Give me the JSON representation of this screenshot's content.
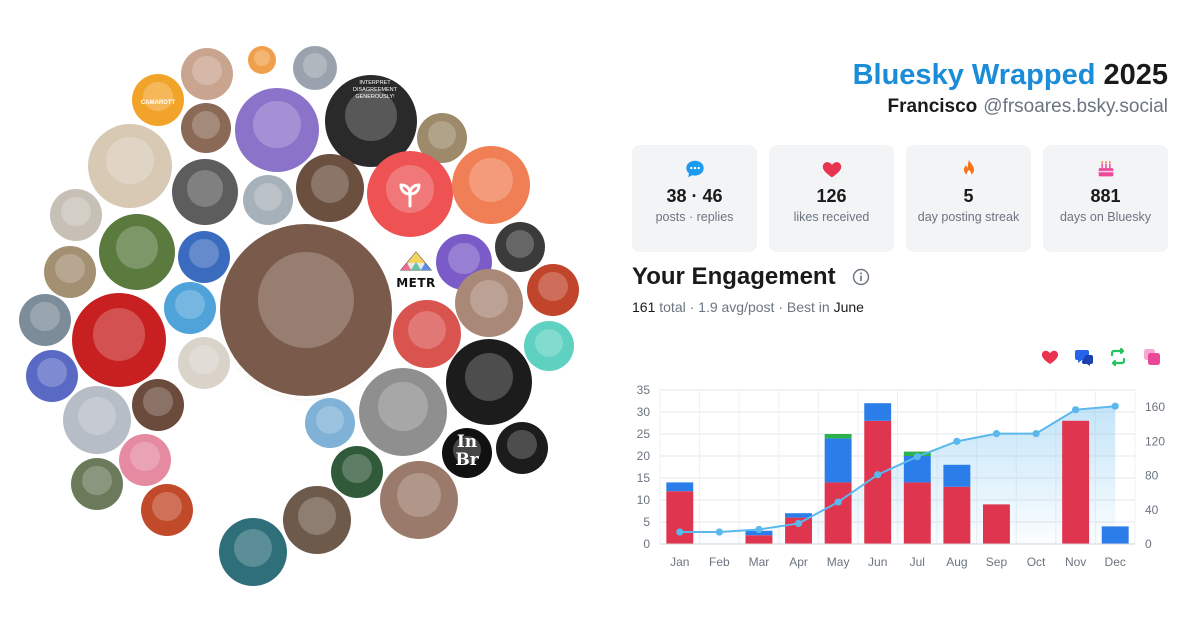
{
  "header": {
    "brand": "Bluesky Wrapped",
    "year": "2025",
    "user_name": "Francisco",
    "handle": "@frsoares.bsky.social"
  },
  "stats": [
    {
      "icon": "speech-bubble-icon",
      "value": "38 · 46",
      "label": "posts · replies",
      "color": "#1d9bf0"
    },
    {
      "icon": "heart-icon",
      "value": "126",
      "label": "likes received",
      "color": "#e8344f"
    },
    {
      "icon": "flame-icon",
      "value": "5",
      "label": "day posting streak",
      "color": "#f97316"
    },
    {
      "icon": "cake-icon",
      "value": "881",
      "label": "days on Bluesky",
      "color": "#ec4899"
    }
  ],
  "engagement": {
    "title": "Your Engagement",
    "total": "161",
    "total_word": "total",
    "avg": "1.9 avg/post",
    "best_prefix": "Best in",
    "best_month": "June",
    "legend_icons": [
      {
        "icon": "heart-icon",
        "color": "#e8344f"
      },
      {
        "icon": "reply-icon",
        "color": "#2563eb"
      },
      {
        "icon": "repost-icon",
        "color": "#22c55e"
      },
      {
        "icon": "quote-icon",
        "color": "#ec4899"
      }
    ]
  },
  "avatar_cloud": {
    "metr_label": "METR",
    "logo_text_1": "CAMAROTT",
    "logo_text_2": "In",
    "logo_text_3": "Br",
    "comic_text": "INTERPRET DISAGREEMENT GENEROUSLY!"
  },
  "chart_data": {
    "type": "bar",
    "categories": [
      "Jan",
      "Feb",
      "Mar",
      "Apr",
      "May",
      "Jun",
      "Jul",
      "Aug",
      "Sep",
      "Oct",
      "Nov",
      "Dec"
    ],
    "series": [
      {
        "name": "likes",
        "color": "#e0354f",
        "values": [
          12,
          0,
          2,
          6,
          14,
          28,
          14,
          13,
          9,
          0,
          28,
          0
        ]
      },
      {
        "name": "replies",
        "color": "#2b7de9",
        "values": [
          2,
          0,
          1,
          1,
          10,
          4,
          6,
          5,
          0,
          0,
          0,
          4
        ]
      },
      {
        "name": "reposts",
        "color": "#2bb24c",
        "values": [
          0,
          0,
          0,
          0,
          1,
          0,
          1,
          0,
          0,
          0,
          0,
          0
        ]
      },
      {
        "name": "cumulative",
        "type": "line",
        "axis": "right",
        "color": "#5ab8ec",
        "values": [
          14,
          14,
          17,
          24,
          49,
          81,
          102,
          120,
          129,
          129,
          157,
          161
        ]
      }
    ],
    "ylim": [
      0,
      35
    ],
    "yticks": [
      0,
      5,
      10,
      15,
      20,
      25,
      30,
      35
    ],
    "ylim_right": [
      0,
      180
    ],
    "yticks_right": [
      0,
      40,
      80,
      120,
      160
    ],
    "grid": true,
    "legend": "icons above chart, top-right"
  }
}
